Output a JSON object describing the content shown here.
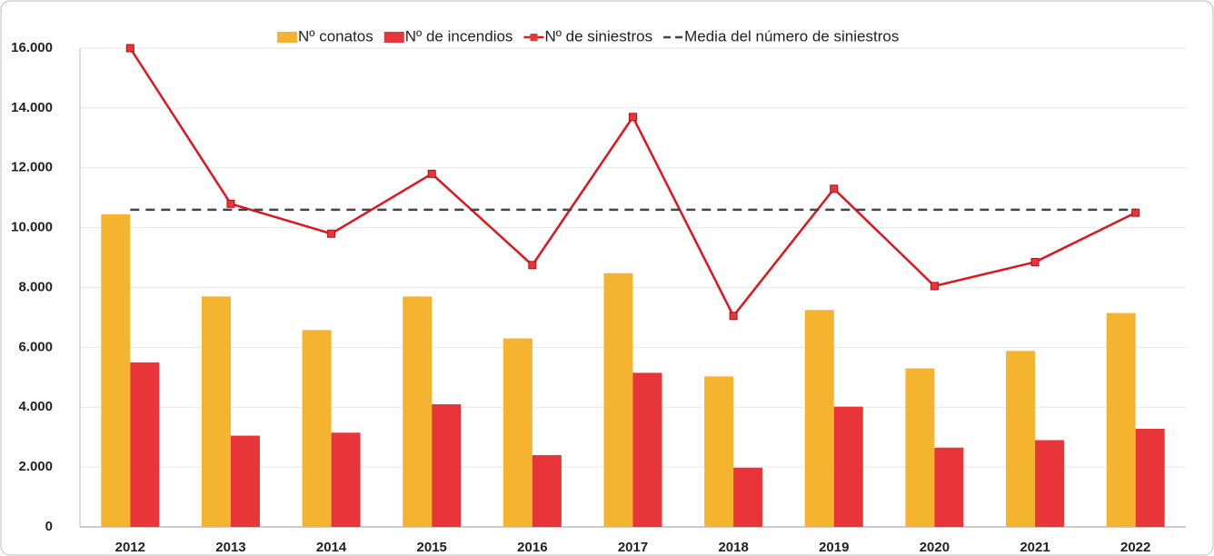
{
  "chart_data": {
    "type": "bar",
    "categories": [
      "2012",
      "2013",
      "2014",
      "2015",
      "2016",
      "2017",
      "2018",
      "2019",
      "2020",
      "2021",
      "2022"
    ],
    "series": [
      {
        "name": "Nº conatos",
        "type": "bar",
        "color": "#f5b430",
        "values": [
          10450,
          7700,
          6580,
          7700,
          6300,
          8480,
          5030,
          7250,
          5300,
          5880,
          7150
        ]
      },
      {
        "name": "Nº de incendios",
        "type": "bar",
        "color": "#e8353a",
        "values": [
          5500,
          3050,
          3150,
          4100,
          2400,
          5150,
          1980,
          4020,
          2650,
          2900,
          3280
        ]
      },
      {
        "name": "Nº de siniestros",
        "type": "line",
        "color": "#e0141e",
        "values": [
          16000,
          10800,
          9800,
          11800,
          8750,
          13700,
          7050,
          11300,
          8050,
          8850,
          10500
        ]
      },
      {
        "name": "Media del número de siniestros",
        "type": "line",
        "style": "dashed",
        "color": "#444444",
        "values": [
          10600,
          10600,
          10600,
          10600,
          10600,
          10600,
          10600,
          10600,
          10600,
          10600,
          10600
        ]
      }
    ],
    "ylim": [
      0,
      16000
    ],
    "yticks": [
      0,
      {
        "value": 2000,
        "label": "2.000"
      },
      {
        "value": 4000,
        "label": "4.000"
      },
      {
        "value": 6000,
        "label": "6.000"
      },
      {
        "value": 8000,
        "label": "8.000"
      },
      {
        "value": 10000,
        "label": "10.000"
      },
      {
        "value": 12000,
        "label": "12.000"
      },
      {
        "value": 14000,
        "label": "14.000"
      },
      {
        "value": 16000,
        "label": "16.000"
      }
    ],
    "grid": true,
    "legend": "top"
  }
}
